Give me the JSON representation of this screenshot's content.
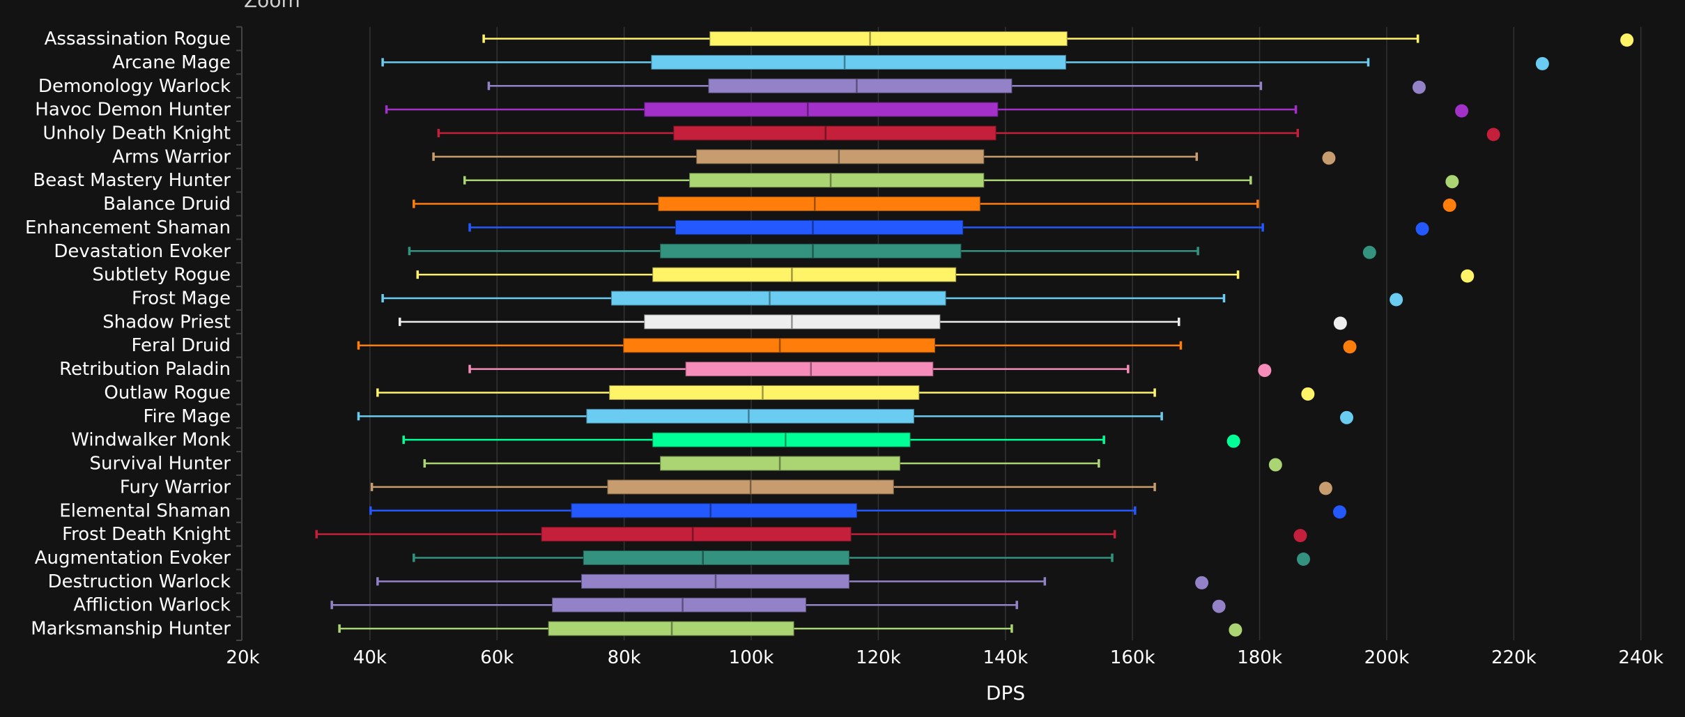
{
  "zoom_label": "Zoom",
  "chart_data": {
    "type": "boxplot",
    "orientation": "horizontal",
    "xlabel": "DPS",
    "ylabel": "",
    "xlim": [
      20000,
      240000
    ],
    "x_ticks": [
      "20k",
      "40k",
      "60k",
      "80k",
      "100k",
      "120k",
      "140k",
      "160k",
      "180k",
      "200k",
      "220k",
      "240k"
    ],
    "x_tick_values": [
      20000,
      40000,
      60000,
      80000,
      100000,
      120000,
      140000,
      160000,
      180000,
      200000,
      220000,
      240000
    ],
    "grid": true,
    "value_fields": [
      "min",
      "q1",
      "median",
      "q3",
      "max",
      "max_point"
    ],
    "series": [
      {
        "name": "Assassination Rogue",
        "color": "#fff468",
        "values": [
          57900,
          93500,
          118700,
          149700,
          204900,
          237800
        ]
      },
      {
        "name": "Arcane Mage",
        "color": "#69ccf0",
        "values": [
          42000,
          84300,
          114700,
          149500,
          197100,
          224500
        ]
      },
      {
        "name": "Demonology Warlock",
        "color": "#9482c9",
        "values": [
          58700,
          93300,
          116600,
          141000,
          180200,
          205100
        ]
      },
      {
        "name": "Havoc Demon Hunter",
        "color": "#a330c9",
        "values": [
          42600,
          83200,
          108900,
          138800,
          185700,
          211800
        ]
      },
      {
        "name": "Unholy Death Knight",
        "color": "#c41f3b",
        "values": [
          50800,
          87800,
          111700,
          138500,
          186000,
          216800
        ]
      },
      {
        "name": "Arms Warrior",
        "color": "#c79c6e",
        "values": [
          50000,
          91400,
          113800,
          136600,
          170100,
          190900
        ]
      },
      {
        "name": "Beast Mastery Hunter",
        "color": "#abd473",
        "values": [
          54900,
          90300,
          112500,
          136600,
          178600,
          210300
        ]
      },
      {
        "name": "Balance Druid",
        "color": "#ff7d0a",
        "values": [
          46900,
          85400,
          110000,
          136000,
          179700,
          209900
        ]
      },
      {
        "name": "Enhancement Shaman",
        "color": "#2459ff",
        "values": [
          55700,
          88100,
          109700,
          133300,
          180500,
          205600
        ]
      },
      {
        "name": "Devastation Evoker",
        "color": "#33937f",
        "values": [
          46200,
          85700,
          109700,
          133000,
          170300,
          197300
        ]
      },
      {
        "name": "Subtlety Rogue",
        "color": "#fff468",
        "values": [
          47500,
          84500,
          106400,
          132200,
          176600,
          212700
        ]
      },
      {
        "name": "Frost Mage",
        "color": "#69ccf0",
        "values": [
          42000,
          78000,
          102900,
          130600,
          174400,
          201500
        ]
      },
      {
        "name": "Shadow Priest",
        "color": "#eeeeee",
        "values": [
          44700,
          83200,
          106400,
          129700,
          167300,
          192700
        ]
      },
      {
        "name": "Feral Druid",
        "color": "#ff7d0a",
        "values": [
          38200,
          79900,
          104500,
          128900,
          167600,
          194200
        ]
      },
      {
        "name": "Retribution Paladin",
        "color": "#f58cba",
        "values": [
          55700,
          89700,
          109400,
          128600,
          159300,
          180800
        ]
      },
      {
        "name": "Outlaw Rogue",
        "color": "#fff468",
        "values": [
          41200,
          77700,
          101800,
          126400,
          163500,
          187600
        ]
      },
      {
        "name": "Fire Mage",
        "color": "#69ccf0",
        "values": [
          38200,
          74100,
          99600,
          125600,
          164600,
          193700
        ]
      },
      {
        "name": "Windwalker Monk",
        "color": "#00ff96",
        "values": [
          45300,
          84500,
          105400,
          125000,
          155500,
          175900
        ]
      },
      {
        "name": "Survival Hunter",
        "color": "#abd473",
        "values": [
          48600,
          85700,
          104500,
          123400,
          154700,
          182500
        ]
      },
      {
        "name": "Fury Warrior",
        "color": "#c79c6e",
        "values": [
          40300,
          77400,
          99900,
          122400,
          163500,
          190400
        ]
      },
      {
        "name": "Elemental Shaman",
        "color": "#2459ff",
        "values": [
          40100,
          71700,
          93600,
          116600,
          160400,
          192600
        ]
      },
      {
        "name": "Frost Death Knight",
        "color": "#c41f3b",
        "values": [
          31600,
          67000,
          90800,
          115700,
          157200,
          186400
        ]
      },
      {
        "name": "Augmentation Evoker",
        "color": "#33937f",
        "values": [
          46900,
          73600,
          92400,
          115400,
          156800,
          186900
        ]
      },
      {
        "name": "Destruction Warlock",
        "color": "#9482c9",
        "values": [
          41200,
          73300,
          94400,
          115400,
          146200,
          170900
        ]
      },
      {
        "name": "Affliction Warlock",
        "color": "#9482c9",
        "values": [
          34000,
          68700,
          89200,
          108600,
          141800,
          173600
        ]
      },
      {
        "name": "Marksmanship Hunter",
        "color": "#abd473",
        "values": [
          35200,
          68100,
          87500,
          106700,
          141000,
          176200
        ]
      }
    ]
  }
}
